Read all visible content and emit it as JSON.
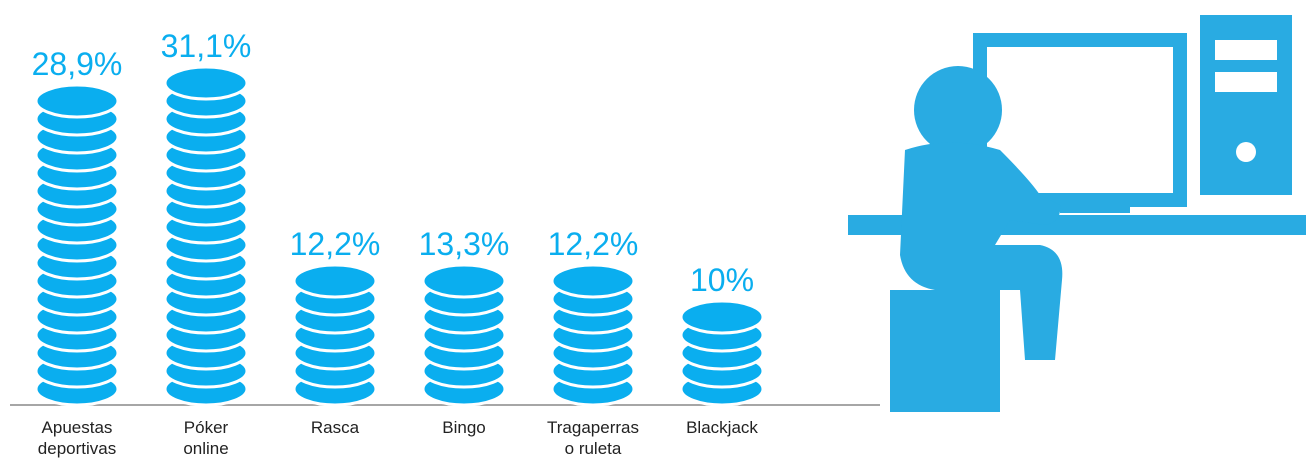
{
  "chart_data": {
    "type": "bar",
    "categories": [
      "Apuestas\ndeportivas",
      "Póker\nonline",
      "Rasca",
      "Bingo",
      "Tragaperras\no ruleta",
      "Blackjack"
    ],
    "values": [
      28.9,
      31.1,
      12.2,
      13.3,
      12.2,
      10
    ],
    "value_labels": [
      "28,9%",
      "31,1%",
      "12,2%",
      "13,3%",
      "12,2%",
      "10%"
    ],
    "color": "#0aaeef"
  }
}
